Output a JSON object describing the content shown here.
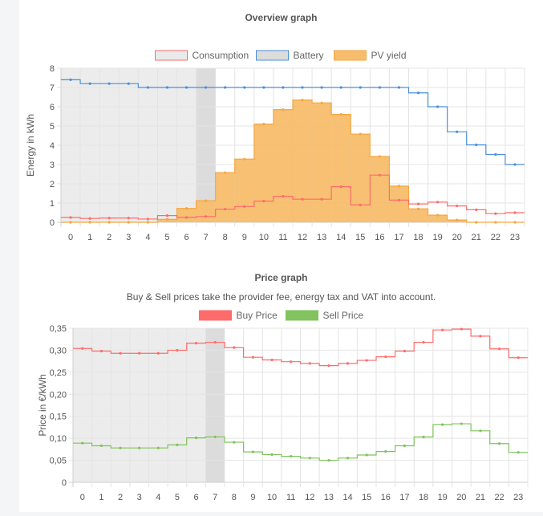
{
  "chart_data": [
    {
      "type": "line",
      "title": "Overview graph",
      "subtitle": "",
      "xlabel": "",
      "ylabel": "Energy in kWh",
      "x": [
        0,
        1,
        2,
        3,
        4,
        5,
        6,
        7,
        8,
        9,
        10,
        11,
        12,
        13,
        14,
        15,
        16,
        17,
        18,
        19,
        20,
        21,
        22,
        23
      ],
      "ylim": [
        0,
        8
      ],
      "yticks": [
        "0",
        "1",
        "2",
        "3",
        "4",
        "5",
        "6",
        "7",
        "8"
      ],
      "past_hours": [
        0,
        1,
        2,
        3,
        4,
        5,
        6
      ],
      "current_hour": 7,
      "grid": true,
      "legend_position": "top",
      "series": [
        {
          "name": "Consumption",
          "style": "step-line",
          "color": "#ff6b6b",
          "fill": "#eaeaea",
          "values": [
            0.25,
            0.2,
            0.22,
            0.22,
            0.17,
            0.35,
            0.25,
            0.3,
            0.68,
            0.82,
            1.1,
            1.35,
            1.2,
            1.2,
            1.85,
            0.9,
            2.45,
            1.15,
            0.95,
            1.05,
            0.85,
            0.65,
            0.45,
            0.5
          ]
        },
        {
          "name": "Battery",
          "style": "step-line",
          "color": "#4a90d9",
          "fill": "#dcdcdc",
          "values": [
            7.4,
            7.2,
            7.2,
            7.2,
            7.0,
            7.0,
            7.0,
            7.0,
            7.0,
            7.0,
            7.0,
            7.0,
            7.0,
            7.0,
            7.0,
            7.0,
            7.0,
            7.0,
            6.72,
            6.0,
            4.7,
            4.02,
            3.52,
            3.0
          ]
        },
        {
          "name": "PV yield",
          "style": "step-area",
          "color": "#f5a742",
          "fill": "#f7bd6c",
          "values": [
            0,
            0,
            0,
            0,
            0,
            0.15,
            0.72,
            1.12,
            2.58,
            3.28,
            5.1,
            5.85,
            6.35,
            6.2,
            5.6,
            4.58,
            3.42,
            1.88,
            0.7,
            0.37,
            0.12,
            0,
            0,
            0
          ]
        }
      ]
    },
    {
      "type": "line",
      "title": "Price graph",
      "subtitle": "Buy & Sell prices take the provider fee, energy tax and VAT into account.",
      "xlabel": "",
      "ylabel": "Price in €/kWh",
      "x": [
        0,
        1,
        2,
        3,
        4,
        5,
        6,
        7,
        8,
        9,
        10,
        11,
        12,
        13,
        14,
        15,
        16,
        17,
        18,
        19,
        20,
        21,
        22,
        23
      ],
      "ylim": [
        0,
        0.35
      ],
      "yticks": [
        "0",
        "0,05",
        "0,10",
        "0,15",
        "0,20",
        "0,25",
        "0,30",
        "0,35"
      ],
      "past_hours": [
        0,
        1,
        2,
        3,
        4,
        5,
        6
      ],
      "current_hour": 7,
      "grid": true,
      "legend_position": "top",
      "series": [
        {
          "name": "Buy Price",
          "style": "step-line",
          "color": "#ff6b6b",
          "legend_fill": "#ff6b6b",
          "values": [
            0.304,
            0.298,
            0.293,
            0.293,
            0.293,
            0.3,
            0.316,
            0.318,
            0.306,
            0.284,
            0.278,
            0.274,
            0.27,
            0.265,
            0.27,
            0.277,
            0.285,
            0.298,
            0.318,
            0.346,
            0.348,
            0.332,
            0.303,
            0.283
          ]
        },
        {
          "name": "Sell Price",
          "style": "step-line",
          "color": "#7ec35a",
          "legend_fill": "#82c35f",
          "values": [
            0.089,
            0.083,
            0.078,
            0.078,
            0.078,
            0.085,
            0.101,
            0.103,
            0.091,
            0.069,
            0.063,
            0.059,
            0.055,
            0.05,
            0.055,
            0.062,
            0.07,
            0.083,
            0.103,
            0.131,
            0.133,
            0.117,
            0.088,
            0.068
          ]
        }
      ]
    }
  ]
}
